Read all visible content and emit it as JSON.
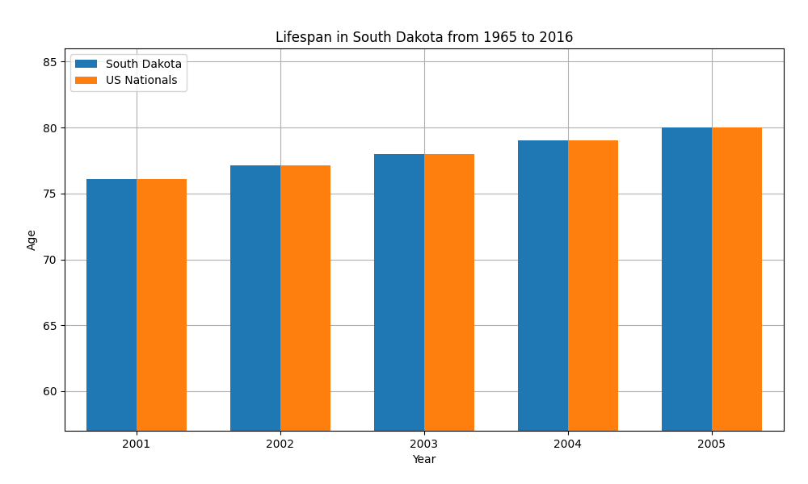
{
  "chart_data": {
    "type": "bar",
    "title": "Lifespan in South Dakota from 1965 to 2016",
    "x_label": "Year",
    "y_label": "Age",
    "categories": [
      "2001",
      "2002",
      "2003",
      "2004",
      "2005"
    ],
    "series": [
      {
        "name": "South Dakota",
        "values": [
          76.1,
          77.1,
          78.0,
          79.0,
          80.0
        ]
      },
      {
        "name": "US Nationals",
        "values": [
          76.1,
          77.1,
          78.0,
          79.0,
          80.0
        ]
      }
    ],
    "ylim": [
      57,
      86
    ],
    "yticks": [
      60,
      65,
      70,
      75,
      80,
      85
    ],
    "grid": true,
    "legend": "upper left"
  }
}
